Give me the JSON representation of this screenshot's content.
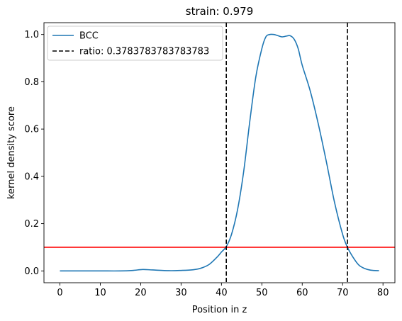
{
  "chart_data": {
    "type": "line",
    "title": "strain: 0.979",
    "xlabel": "Position in z",
    "ylabel": "kernel density score",
    "xlim": [
      -3.95,
      82.95
    ],
    "ylim": [
      -0.05,
      1.05
    ],
    "xticks": [
      0,
      10,
      20,
      30,
      40,
      50,
      60,
      70,
      80
    ],
    "yticks": [
      0.0,
      0.2,
      0.4,
      0.6,
      0.8,
      1.0
    ],
    "xtick_labels": [
      "0",
      "10",
      "20",
      "30",
      "40",
      "50",
      "60",
      "70",
      "80"
    ],
    "ytick_labels": [
      "0.0",
      "0.2",
      "0.4",
      "0.6",
      "0.8",
      "1.0"
    ],
    "grid": false,
    "legend_position": "upper-left",
    "series": [
      {
        "name": "BCC",
        "color": "#1f77b4",
        "style": "solid",
        "x": [
          0,
          5,
          10,
          15,
          18,
          20.5,
          23,
          27,
          30,
          33,
          35,
          37,
          39,
          40,
          41.2,
          42.5,
          44,
          45.5,
          47,
          48.5,
          50,
          51,
          52,
          53,
          54,
          55,
          56,
          57,
          58,
          59,
          60,
          62,
          64,
          66,
          68,
          70,
          71.2,
          72.5,
          74,
          75.5,
          77,
          79
        ],
        "y": [
          0.0,
          0.0,
          0.0,
          0.0,
          0.002,
          0.006,
          0.004,
          0.001,
          0.002,
          0.005,
          0.012,
          0.028,
          0.06,
          0.08,
          0.103,
          0.155,
          0.26,
          0.42,
          0.63,
          0.82,
          0.94,
          0.99,
          1.0,
          1.0,
          0.995,
          0.99,
          0.993,
          0.995,
          0.98,
          0.94,
          0.87,
          0.76,
          0.62,
          0.46,
          0.29,
          0.155,
          0.1,
          0.06,
          0.025,
          0.01,
          0.003,
          0.001
        ]
      },
      {
        "name": "ratio: 0.3783783783783783",
        "color": "#000000",
        "style": "dashed",
        "vlines": [
          41.2,
          71.2
        ]
      }
    ],
    "hlines": [
      {
        "y": 0.1,
        "color": "#ff0000"
      }
    ]
  }
}
